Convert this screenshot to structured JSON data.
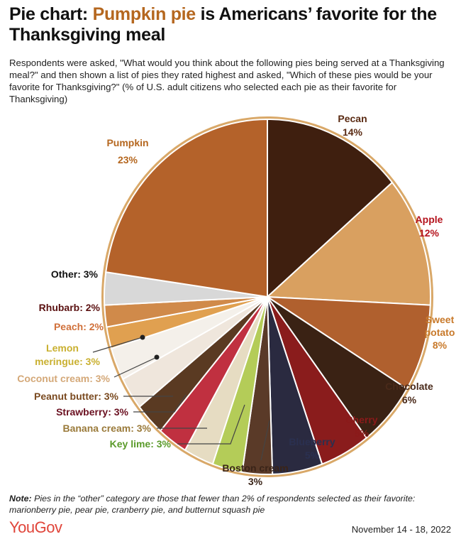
{
  "title": {
    "prefix": "Pie chart: ",
    "highlight": "Pumpkin pie",
    "suffix": " is Americans’ favorite for the Thanksgiving meal"
  },
  "subtitle": "Respondents were asked, \"What would you think about the following pies being served at a Thanksgiving meal?\" and then shown a list of pies they rated highest and asked, \"Which of these pies would be your favorite for Thanksgiving?\" (% of U.S. adult citizens who selected each pie as their favorite for Thanksgiving)",
  "chart_data": {
    "type": "pie",
    "start": "12 o'clock, clockwise",
    "slices": [
      {
        "name": "Pecan",
        "value": 14,
        "label": [
          "Pecan",
          "14%"
        ],
        "label_color": "#5a2a12",
        "fill": "#3f1f0f"
      },
      {
        "name": "Apple",
        "value": 12,
        "label": [
          "Apple",
          "12%"
        ],
        "label_color": "#b5141e",
        "fill": "#d9a060"
      },
      {
        "name": "Sweet potato",
        "value": 8,
        "label": [
          "Sweet",
          "potato",
          "8%"
        ],
        "label_color": "#c8792a",
        "fill": "#b0602e"
      },
      {
        "name": "Chocolate",
        "value": 6,
        "label": [
          "Chocolate",
          "6%"
        ],
        "label_color": "#4a2a1a",
        "fill": "#3a2214"
      },
      {
        "name": "Cherry",
        "value": 5,
        "label": [
          "Cherry",
          "5%"
        ],
        "label_color": "#8b1a1a",
        "fill": "#8a1c1c"
      },
      {
        "name": "Blueberry",
        "value": 5,
        "label": [
          "Blueberry",
          "5%"
        ],
        "label_color": "#2a3050",
        "fill": "#2a2a40"
      },
      {
        "name": "Boston cream",
        "value": 3,
        "label": [
          "Boston cream",
          "3%"
        ],
        "label_color": "#3a2418",
        "fill": "#5a3a28"
      },
      {
        "name": "Key lime",
        "value": 3,
        "label": [
          "Key lime: 3%"
        ],
        "label_color": "#5a9a2a",
        "fill": "#b4cc58"
      },
      {
        "name": "Banana cream",
        "value": 3,
        "label": [
          "Banana cream: 3%"
        ],
        "label_color": "#9a7a3a",
        "fill": "#e6dcc2"
      },
      {
        "name": "Strawberry",
        "value": 3,
        "label": [
          "Strawberry: 3%"
        ],
        "label_color": "#6a1020",
        "fill": "#c03040"
      },
      {
        "name": "Peanut butter",
        "value": 3,
        "label": [
          "Peanut butter: 3%"
        ],
        "label_color": "#7a4a20",
        "fill": "#5a3a22"
      },
      {
        "name": "Coconut cream",
        "value": 3,
        "label": [
          "Coconut cream: 3%"
        ],
        "label_color": "#d4a878",
        "fill": "#efe6dc"
      },
      {
        "name": "Lemon meringue",
        "value": 3,
        "label": [
          "Lemon",
          "meringue: 3%"
        ],
        "label_color": "#c9b030",
        "fill": "#f4f0ea"
      },
      {
        "name": "Peach",
        "value": 2,
        "label": [
          "Peach: 2%"
        ],
        "label_color": "#d0703a",
        "fill": "#e0a050"
      },
      {
        "name": "Rhubarb",
        "value": 2,
        "label": [
          "Rhubarb: 2%"
        ],
        "label_color": "#5a1010",
        "fill": "#d08a4a"
      },
      {
        "name": "Other",
        "value": 3,
        "label": [
          "Other: 3%"
        ],
        "label_color": "#111111",
        "fill": "#d8d8d8"
      },
      {
        "name": "Pumpkin",
        "value": 23,
        "label": [
          "Pumpkin",
          "23%"
        ],
        "label_color": "#b5671f",
        "fill": "#b4622a"
      }
    ]
  },
  "note": {
    "lead": "Note:",
    "text": " Pies in the “other” category are those that fewer than 2% of respondents selected as their favorite: marionberry pie, pear pie, cranberry pie, and butternut squash pie"
  },
  "brand": "YouGov",
  "date": "November 14 - 18, 2022"
}
